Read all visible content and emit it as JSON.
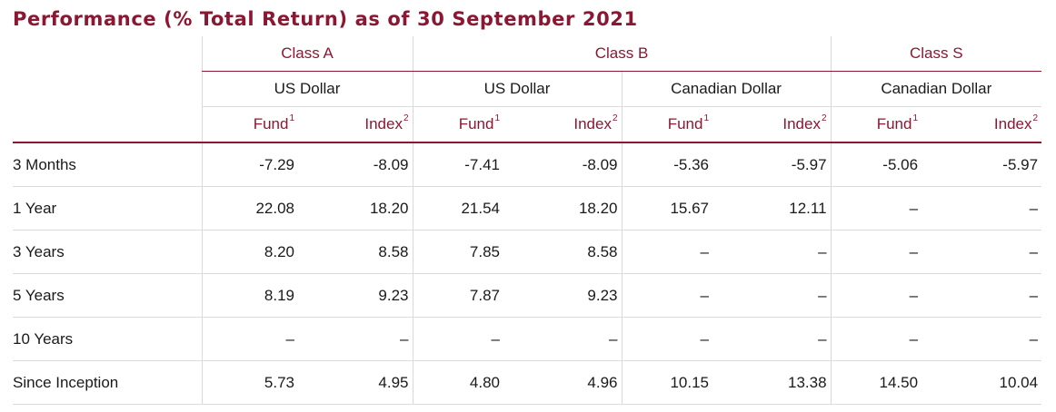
{
  "title": "Performance (% Total Return) as of 30 September 2021",
  "classes": [
    {
      "label": "Class A"
    },
    {
      "label": "Class B"
    },
    {
      "label": "Class S"
    }
  ],
  "currencies": [
    "US Dollar",
    "US Dollar",
    "Canadian Dollar",
    "Canadian Dollar"
  ],
  "column_headers": {
    "fund": "Fund",
    "fund_note": "1",
    "index": "Index",
    "index_note": "2"
  },
  "rows": [
    {
      "label": "3 Months",
      "values": [
        "-7.29",
        "-8.09",
        "-7.41",
        "-8.09",
        "-5.36",
        "-5.97",
        "-5.06",
        "-5.97"
      ]
    },
    {
      "label": "1 Year",
      "values": [
        "22.08",
        "18.20",
        "21.54",
        "18.20",
        "15.67",
        "12.11",
        "–",
        "–"
      ]
    },
    {
      "label": "3 Years",
      "values": [
        "8.20",
        "8.58",
        "7.85",
        "8.58",
        "–",
        "–",
        "–",
        "–"
      ]
    },
    {
      "label": "5 Years",
      "values": [
        "8.19",
        "9.23",
        "7.87",
        "9.23",
        "–",
        "–",
        "–",
        "–"
      ]
    },
    {
      "label": "10 Years",
      "values": [
        "–",
        "–",
        "–",
        "–",
        "–",
        "–",
        "–",
        "–"
      ]
    },
    {
      "label": "Since Inception",
      "values": [
        "5.73",
        "4.95",
        "4.80",
        "4.96",
        "10.15",
        "13.38",
        "14.50",
        "10.04"
      ]
    }
  ]
}
